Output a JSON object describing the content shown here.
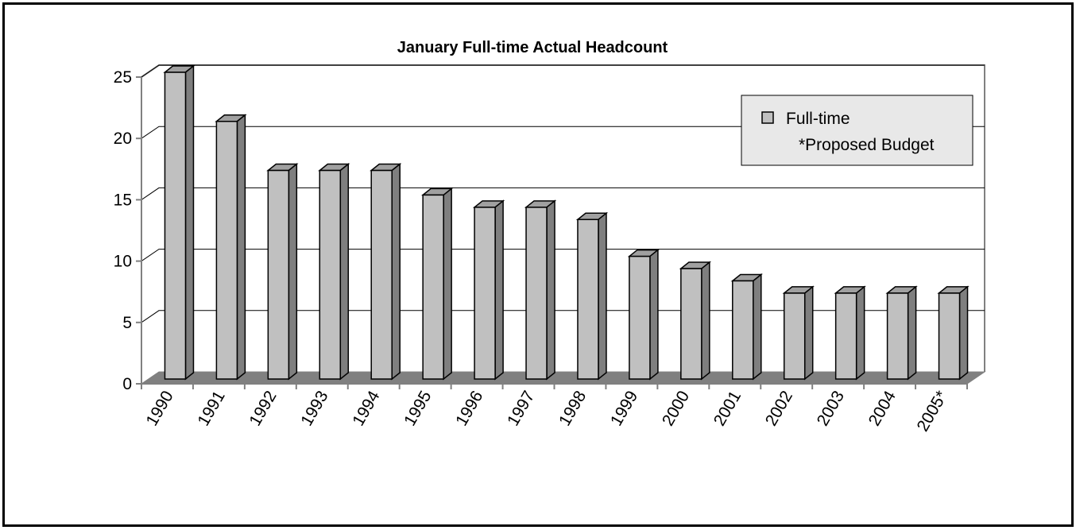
{
  "chart_data": {
    "type": "bar",
    "title": "January Full-time Actual Headcount",
    "xlabel": "",
    "ylabel": "",
    "categories": [
      "1990",
      "1991",
      "1992",
      "1993",
      "1994",
      "1995",
      "1996",
      "1997",
      "1998",
      "1999",
      "2000",
      "2001",
      "2002",
      "2003",
      "2004",
      "2005*"
    ],
    "series": [
      {
        "name": "Full-time",
        "values": [
          25,
          21,
          17,
          17,
          17,
          15,
          14,
          14,
          13,
          10,
          9,
          8,
          7,
          7,
          7,
          7
        ]
      }
    ],
    "ylim": [
      0,
      25
    ],
    "yticks": [
      0,
      5,
      10,
      15,
      20,
      25
    ],
    "grid": true,
    "legend": {
      "placement": "top-right",
      "entries": [
        "Full-time"
      ],
      "note": "*Proposed Budget"
    },
    "colors": {
      "bar_front": "#c0c0c0",
      "bar_side": "#7f7f7f",
      "bar_top": "#a0a0a0",
      "floor": "#808080",
      "legend_bg": "#e8e8e8"
    }
  }
}
